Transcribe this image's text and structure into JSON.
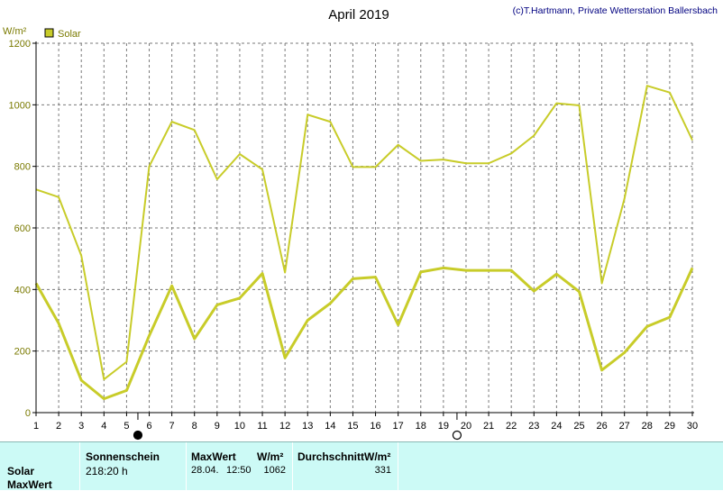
{
  "chart_data": {
    "type": "line",
    "title": "April 2019",
    "credit": "(c)T.Hartmann, Private Wetterstation Ballersbach",
    "ylabel": "W/m²",
    "ylim": [
      0,
      1200
    ],
    "yticks": [
      0,
      200,
      400,
      600,
      800,
      1000,
      1200
    ],
    "x": [
      1,
      2,
      3,
      4,
      5,
      6,
      7,
      8,
      9,
      10,
      11,
      12,
      13,
      14,
      15,
      16,
      17,
      18,
      19,
      20,
      21,
      22,
      23,
      24,
      25,
      26,
      27,
      28,
      29,
      30
    ],
    "xlim": [
      1,
      30
    ],
    "grid": true,
    "legend": {
      "position": "top-left",
      "label": "Solar"
    },
    "series": [
      {
        "name": "Solar",
        "role": "max",
        "color": "#c8cc29",
        "values": [
          725,
          700,
          510,
          108,
          165,
          800,
          945,
          918,
          758,
          840,
          790,
          455,
          968,
          945,
          798,
          798,
          870,
          818,
          822,
          810,
          810,
          842,
          900,
          1005,
          998,
          420,
          695,
          1062,
          1040,
          885
        ]
      },
      {
        "name": "Solar",
        "role": "average",
        "color": "#c8cc29",
        "values": [
          420,
          290,
          105,
          45,
          72,
          250,
          412,
          240,
          350,
          372,
          452,
          178,
          300,
          355,
          435,
          440,
          285,
          457,
          470,
          462,
          462,
          462,
          395,
          450,
          393,
          138,
          195,
          280,
          310,
          470
        ]
      }
    ],
    "moon_markers": [
      {
        "x": 5.5,
        "phase": "new-moon"
      },
      {
        "x": 19.6,
        "phase": "full-moon"
      }
    ]
  },
  "info": {
    "row_label_1": "Solar",
    "row_label_2": "MaxWert",
    "sonnenschein_header": "Sonnenschein",
    "sonnenschein_value": "218:20 h",
    "maxwert_header": "MaxWert",
    "maxwert_unit": "W/m²",
    "maxwert_date": "28.04.",
    "maxwert_time": "12:50",
    "maxwert_value": "1062",
    "durchschnitt_header": "DurchschnittW/m²",
    "durchschnitt_value": "331"
  },
  "colors": {
    "line": "#c8cc29",
    "info_background": "#ccfaf6",
    "axis": "#000000",
    "grid": "#7a7a7a"
  }
}
